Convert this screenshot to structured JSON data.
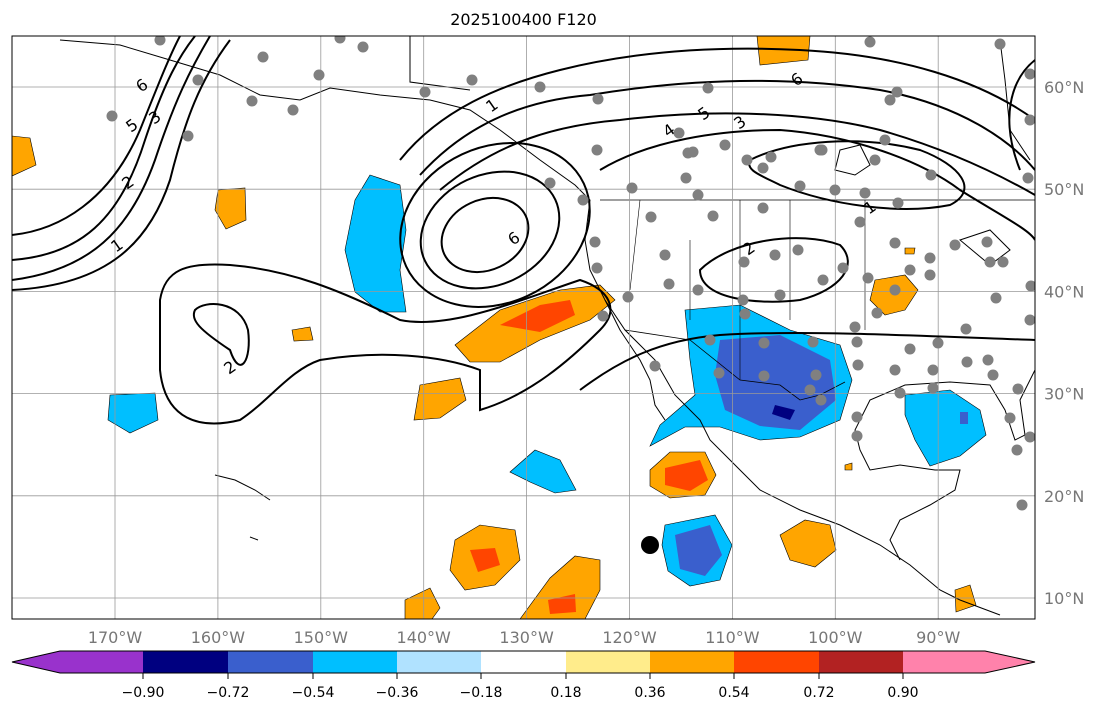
{
  "title": "2025100400 F120",
  "lon_ticks": [
    {
      "value": -170,
      "label": "170°W"
    },
    {
      "value": -160,
      "label": "160°W"
    },
    {
      "value": -150,
      "label": "150°W"
    },
    {
      "value": -140,
      "label": "140°W"
    },
    {
      "value": -130,
      "label": "130°W"
    },
    {
      "value": -120,
      "label": "120°W"
    },
    {
      "value": -110,
      "label": "110°W"
    },
    {
      "value": -100,
      "label": "100°W"
    },
    {
      "value": -90,
      "label": "90°W"
    }
  ],
  "lat_ticks": [
    {
      "value": 60,
      "label": "60°N"
    },
    {
      "value": 50,
      "label": "50°N"
    },
    {
      "value": 40,
      "label": "40°N"
    },
    {
      "value": 30,
      "label": "30°N"
    },
    {
      "value": 20,
      "label": "20°N"
    },
    {
      "value": 10,
      "label": "10°N"
    }
  ],
  "colorbar": {
    "levels": [
      "−0.90",
      "−0.72",
      "−0.54",
      "−0.36",
      "−0.18",
      "0.18",
      "0.36",
      "0.54",
      "0.72",
      "0.90"
    ],
    "colors": [
      "#9932cc",
      "#000080",
      "#3a5fcd",
      "#00bfff",
      "#b0e2ff",
      "#ffffff",
      "#ffec8b",
      "#ffa500",
      "#ff4500",
      "#b22222",
      "#ff82ab"
    ]
  },
  "contour_labels": [
    "6",
    "2",
    "2",
    "1",
    "2",
    "3",
    "1",
    "5",
    "4",
    "3",
    "6",
    "1",
    "6",
    "5"
  ]
}
